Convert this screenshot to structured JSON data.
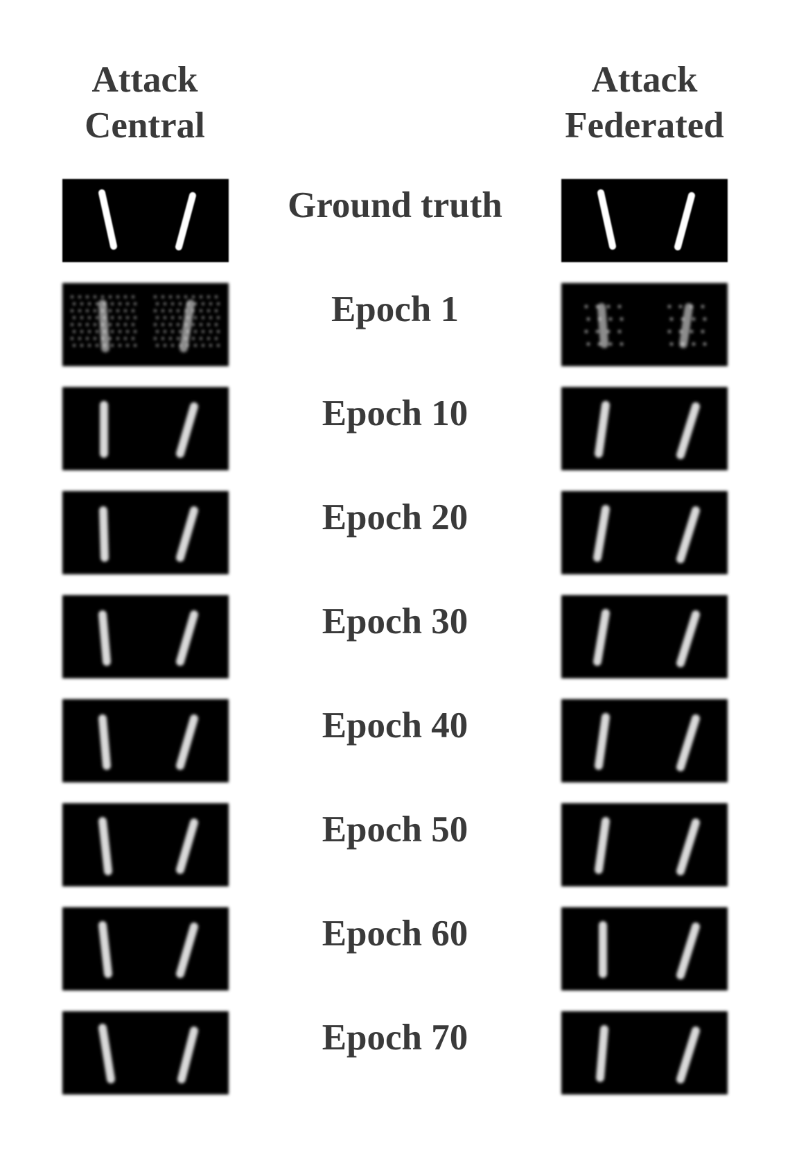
{
  "headers": {
    "left": {
      "line1": "Attack",
      "line2": "Central"
    },
    "right": {
      "line1": "Attack",
      "line2": "Federated"
    }
  },
  "rows": [
    {
      "label": "Ground truth"
    },
    {
      "label": "Epoch 1"
    },
    {
      "label": "Epoch 10"
    },
    {
      "label": "Epoch 20"
    },
    {
      "label": "Epoch 30"
    },
    {
      "label": "Epoch 40"
    },
    {
      "label": "Epoch 50"
    },
    {
      "label": "Epoch 60"
    },
    {
      "label": "Epoch 70"
    }
  ],
  "colors": {
    "text": "#3a3a3a",
    "panel_bg": "#000000",
    "stroke": "#ffffff"
  }
}
